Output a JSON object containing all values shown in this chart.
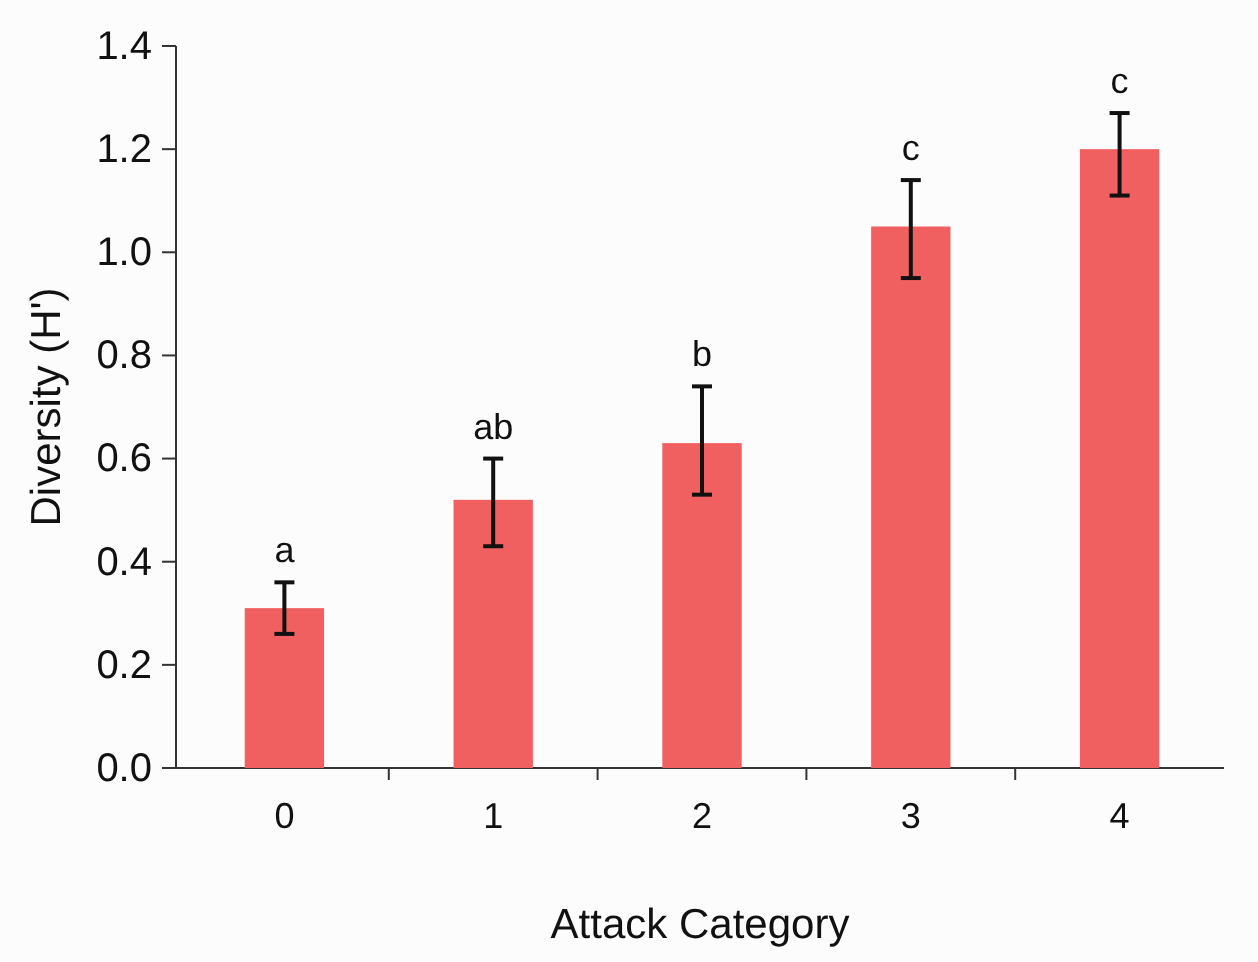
{
  "chart_data": {
    "type": "bar",
    "xlabel": "Attack Category",
    "ylabel": "Diversity (H')",
    "categories": [
      "0",
      "1",
      "2",
      "3",
      "4"
    ],
    "values": [
      0.31,
      0.52,
      0.63,
      1.05,
      1.2
    ],
    "errors": [
      [
        0.26,
        0.36
      ],
      [
        0.43,
        0.6
      ],
      [
        0.53,
        0.74
      ],
      [
        0.95,
        1.14
      ],
      [
        1.11,
        1.27
      ]
    ],
    "color": "#f06060",
    "ylim": [
      0,
      1.4
    ],
    "yticks": [
      {
        "value": 0,
        "label": "0.0"
      },
      0.2,
      0.4,
      0.6,
      0.8,
      {
        "value": 1,
        "label": "1.0"
      },
      1.2,
      1.4
    ],
    "grid": false,
    "annotations": [
      {
        "text": "a",
        "x": "0",
        "y": 0.36
      },
      {
        "text": "ab",
        "x": "1",
        "y": 0.6
      },
      {
        "text": "b",
        "x": "2",
        "y": 0.74
      },
      {
        "text": "c",
        "x": "3",
        "y": 1.14
      },
      {
        "text": "c",
        "x": "4",
        "y": 1.27
      }
    ]
  }
}
